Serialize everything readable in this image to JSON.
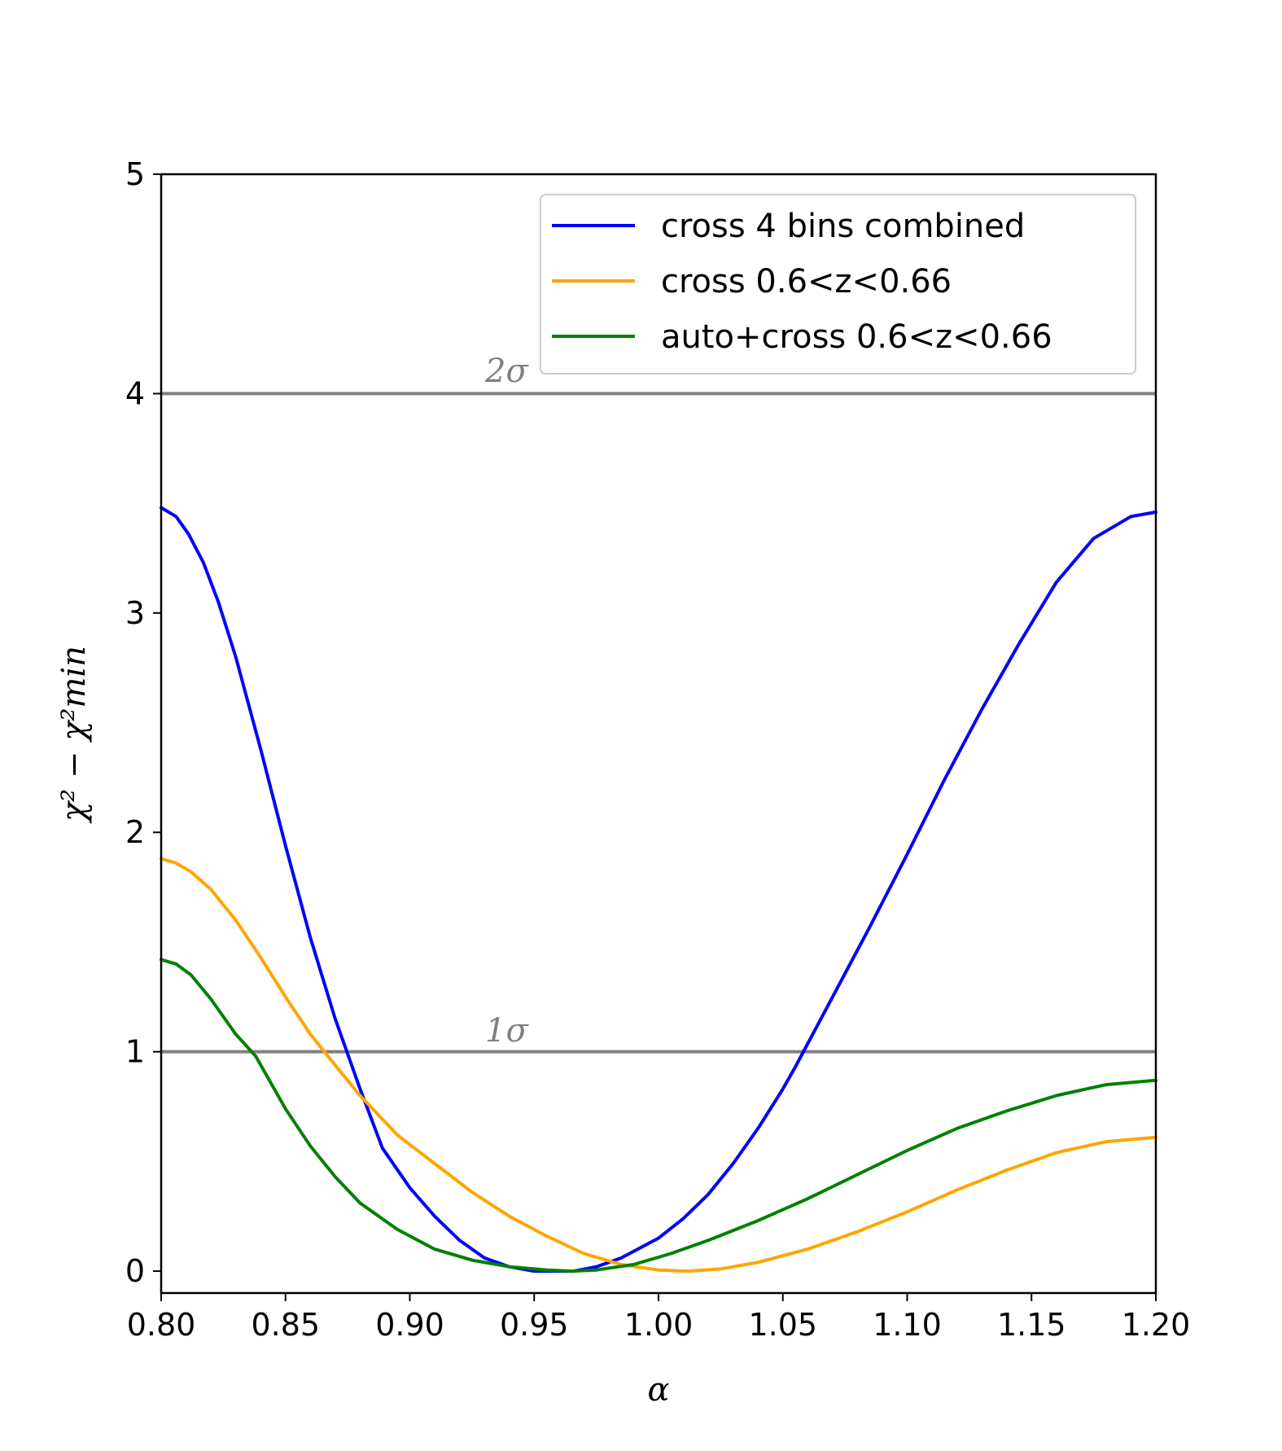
{
  "chart_data": {
    "type": "line",
    "xlabel": "α",
    "ylabel": "χ² − χ²min",
    "xlim": [
      0.8,
      1.2
    ],
    "ylim": [
      -0.1,
      5
    ],
    "xticks": [
      "0.80",
      "0.85",
      "0.90",
      "0.95",
      "1.00",
      "1.05",
      "1.10",
      "1.15",
      "1.20"
    ],
    "yticks": [
      "0",
      "1",
      "2",
      "3",
      "4",
      "5"
    ],
    "grid": false,
    "legend_position": "top-right",
    "reference_lines": [
      {
        "y": 4,
        "label": "2σ",
        "color": "#808080"
      },
      {
        "y": 1,
        "label": "1σ",
        "color": "#808080"
      }
    ],
    "series": [
      {
        "name": "cross 4 bins combined",
        "color": "#0000ff",
        "x": [
          0.8,
          0.806,
          0.811,
          0.817,
          0.823,
          0.83,
          0.84,
          0.85,
          0.86,
          0.87,
          0.88,
          0.889,
          0.9,
          0.91,
          0.92,
          0.93,
          0.94,
          0.95,
          0.96,
          0.966,
          0.975,
          0.985,
          1.0,
          1.01,
          1.02,
          1.03,
          1.04,
          1.05,
          1.055,
          1.07,
          1.085,
          1.1,
          1.115,
          1.13,
          1.145,
          1.16,
          1.175,
          1.19,
          1.2
        ],
        "y": [
          3.48,
          3.44,
          3.36,
          3.23,
          3.05,
          2.8,
          2.38,
          1.94,
          1.52,
          1.15,
          0.83,
          0.56,
          0.38,
          0.25,
          0.14,
          0.06,
          0.02,
          0.0,
          0.0,
          0.0,
          0.02,
          0.06,
          0.15,
          0.24,
          0.35,
          0.49,
          0.65,
          0.83,
          0.93,
          1.25,
          1.57,
          1.9,
          2.24,
          2.56,
          2.86,
          3.14,
          3.34,
          3.44,
          3.46
        ]
      },
      {
        "name": "cross 0.6<z<0.66",
        "color": "#ffa500",
        "x": [
          0.8,
          0.806,
          0.812,
          0.82,
          0.83,
          0.84,
          0.85,
          0.86,
          0.867,
          0.88,
          0.895,
          0.91,
          0.925,
          0.94,
          0.955,
          0.97,
          0.985,
          1.0,
          1.012,
          1.025,
          1.04,
          1.06,
          1.08,
          1.1,
          1.12,
          1.14,
          1.16,
          1.18,
          1.2
        ],
        "y": [
          1.88,
          1.86,
          1.82,
          1.74,
          1.6,
          1.43,
          1.25,
          1.08,
          0.98,
          0.8,
          0.62,
          0.49,
          0.36,
          0.25,
          0.16,
          0.08,
          0.03,
          0.005,
          0.0,
          0.01,
          0.04,
          0.1,
          0.18,
          0.27,
          0.37,
          0.46,
          0.54,
          0.59,
          0.61
        ]
      },
      {
        "name": "auto+cross 0.6<z<0.66",
        "color": "#008000",
        "x": [
          0.8,
          0.806,
          0.812,
          0.82,
          0.83,
          0.838,
          0.85,
          0.86,
          0.87,
          0.88,
          0.895,
          0.91,
          0.925,
          0.94,
          0.955,
          0.965,
          0.975,
          0.99,
          1.005,
          1.02,
          1.04,
          1.06,
          1.08,
          1.1,
          1.12,
          1.14,
          1.16,
          1.18,
          1.2
        ],
        "y": [
          1.42,
          1.4,
          1.35,
          1.24,
          1.08,
          0.98,
          0.74,
          0.57,
          0.43,
          0.31,
          0.19,
          0.1,
          0.05,
          0.02,
          0.005,
          0.0,
          0.005,
          0.03,
          0.08,
          0.14,
          0.23,
          0.33,
          0.44,
          0.55,
          0.65,
          0.73,
          0.8,
          0.85,
          0.87
        ]
      }
    ]
  }
}
